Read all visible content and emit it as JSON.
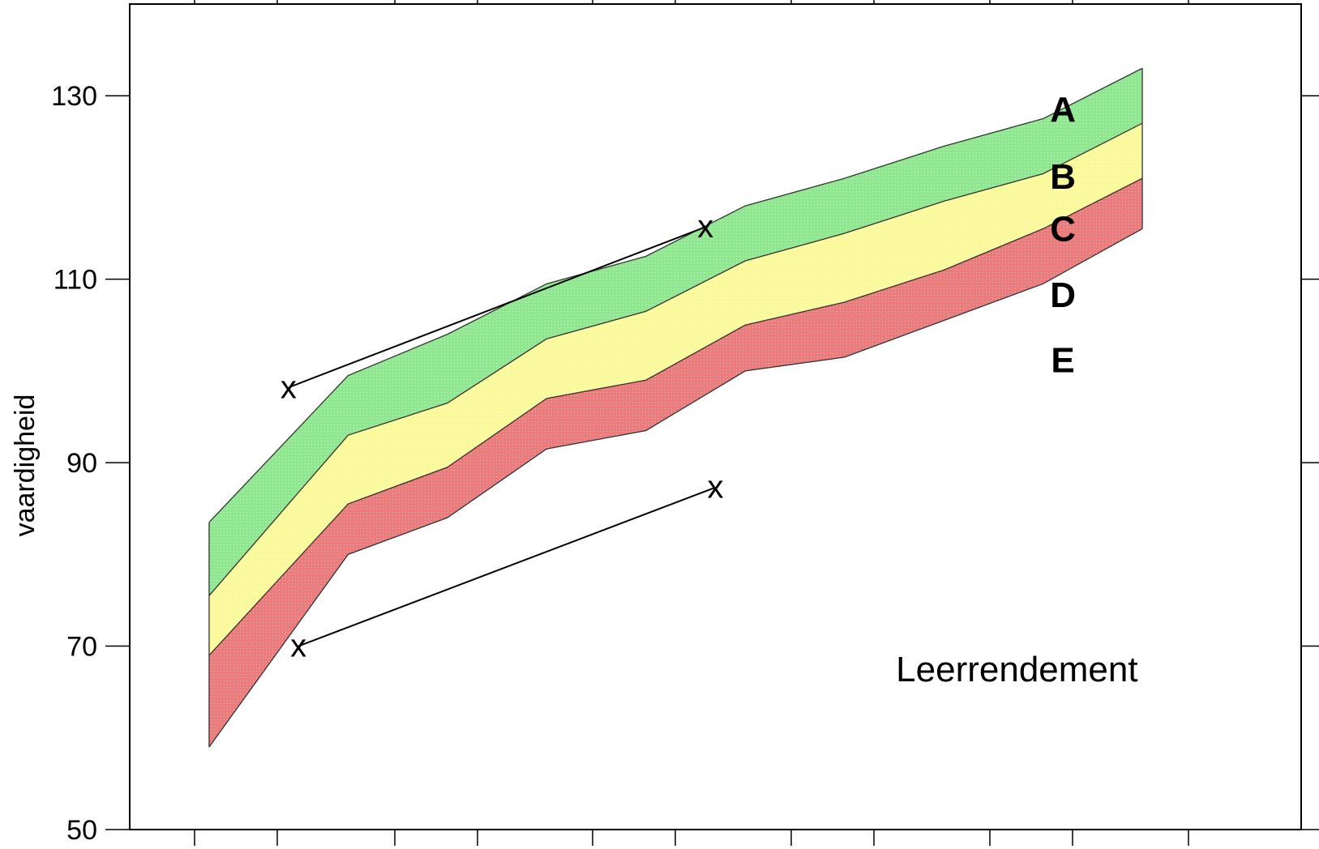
{
  "chart_data": {
    "type": "area",
    "title": "",
    "xlabel": "",
    "ylabel": "vaardigheid",
    "ylim": [
      50,
      140
    ],
    "yticks": [
      50,
      70,
      90,
      110,
      130
    ],
    "ytick_labels": [
      "50",
      "70",
      "90",
      "110",
      "130"
    ],
    "x": [
      1,
      2,
      3,
      4,
      5,
      6,
      7,
      8,
      9,
      10,
      11
    ],
    "xlim": [
      0.2,
      12.0
    ],
    "x_tick_labels_shown": false,
    "grid": false,
    "boundaries": [
      {
        "name": "top_A",
        "values": [
          83.5,
          99.5,
          104.0,
          109.5,
          112.5,
          118.0,
          121.0,
          124.5,
          127.5,
          133.0
        ]
      },
      {
        "name": "AB",
        "values": [
          75.5,
          93.0,
          96.5,
          103.5,
          106.5,
          112.0,
          115.0,
          118.5,
          121.5,
          127.0
        ]
      },
      {
        "name": "CD",
        "values": [
          69.0,
          85.5,
          89.5,
          97.0,
          99.0,
          105.0,
          107.5,
          111.0,
          115.5,
          121.0
        ]
      },
      {
        "name": "bottom",
        "values": [
          59.0,
          80.0,
          84.0,
          91.5,
          93.5,
          100.0,
          101.5,
          105.5,
          109.5,
          115.5
        ]
      }
    ],
    "boundaries_x": [
      1,
      2.4,
      3.4,
      4.4,
      5.4,
      6.4,
      7.4,
      8.4,
      9.4,
      10.4
    ],
    "bands": [
      {
        "from": "AB",
        "to": "top_A",
        "color": "#8fe88f"
      },
      {
        "from": "CD",
        "to": "AB",
        "color": "#fafa9c"
      },
      {
        "from": "bottom",
        "to": "CD",
        "color": "#f07a7a"
      }
    ],
    "band_labels": [
      {
        "text": "A",
        "x": 9.6,
        "y": 128.5
      },
      {
        "text": "B",
        "x": 9.6,
        "y": 121.2
      },
      {
        "text": "C",
        "x": 9.6,
        "y": 115.5
      },
      {
        "text": "D",
        "x": 9.6,
        "y": 108.3
      },
      {
        "text": "E",
        "x": 9.6,
        "y": 101.2
      }
    ],
    "markers": [
      {
        "symbol": "x",
        "x": 1.8,
        "y": 98.2
      },
      {
        "symbol": "x",
        "x": 6.0,
        "y": 115.7
      },
      {
        "symbol": "x",
        "x": 1.9,
        "y": 70.0
      },
      {
        "symbol": "x",
        "x": 6.1,
        "y": 87.3
      }
    ],
    "connectors": [
      [
        0,
        1
      ],
      [
        2,
        3
      ]
    ],
    "annotations": [
      {
        "text": "Leerrendement",
        "x": 8.0,
        "y": 67.5
      }
    ]
  }
}
